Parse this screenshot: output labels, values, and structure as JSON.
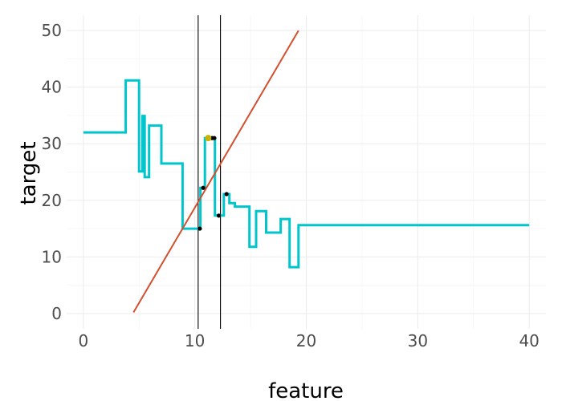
{
  "chart_data": {
    "type": "line",
    "title": "",
    "xlabel": "feature",
    "ylabel": "target",
    "xlim": [
      -1.5,
      41.5
    ],
    "ylim": [
      -2.7,
      52.7
    ],
    "x_ticks": [
      0,
      10,
      20,
      30,
      40
    ],
    "y_ticks": [
      0,
      10,
      20,
      30,
      40,
      50
    ],
    "x_tick_labels": [
      "0",
      "10",
      "20",
      "30",
      "40"
    ],
    "y_tick_labels": [
      "0",
      "10",
      "20",
      "30",
      "40",
      "50"
    ],
    "grid": true,
    "legend": "none",
    "series": [
      {
        "kind": "step",
        "color": "#00C5CD",
        "x": [
          0,
          3.8,
          3.8,
          5.0,
          5.0,
          5.3,
          5.3,
          5.5,
          5.5,
          5.9,
          5.9,
          7.0,
          7.0,
          8.9,
          8.9,
          10.5,
          10.5,
          10.9,
          10.9,
          11.3,
          11.3,
          11.8,
          11.8,
          12.1,
          12.1,
          12.6,
          12.6,
          13.1,
          13.1,
          13.6,
          13.6,
          14.2,
          14.2,
          14.9,
          14.9,
          15.5,
          15.5,
          16.4,
          16.4,
          17.7,
          17.7,
          18.5,
          18.5,
          19.3,
          19.3,
          23.1,
          23.1,
          40
        ],
        "y": [
          32,
          32,
          41.2,
          41.2,
          25.1,
          25.1,
          34.9,
          34.9,
          24.1,
          24.1,
          33.2,
          33.2,
          26.5,
          26.5,
          15,
          15,
          22.2,
          22.2,
          31,
          31,
          31,
          31,
          17.3,
          17.3,
          17.3,
          17.3,
          21.1,
          21.1,
          19.5,
          19.5,
          18.9,
          18.9,
          18.9,
          18.9,
          11.8,
          11.8,
          18.1,
          18.1,
          14.3,
          14.3,
          16.7,
          16.7,
          8.2,
          8.2,
          15.6,
          15.6,
          15.6,
          15.6
        ]
      },
      {
        "kind": "line",
        "color": "#D2502E",
        "x": [
          4.5,
          19.3
        ],
        "y": [
          0.2,
          50
        ]
      }
    ],
    "vertical_lines": [
      10.3,
      12.3
    ],
    "points_black": [
      {
        "x": 10.45,
        "y": 15.0
      },
      {
        "x": 10.75,
        "y": 22.2
      },
      {
        "x": 11.55,
        "y": 31.0
      },
      {
        "x": 11.75,
        "y": 31.0
      },
      {
        "x": 12.15,
        "y": 17.3
      },
      {
        "x": 12.85,
        "y": 21.1
      }
    ],
    "points_highlight": [
      {
        "x": 11.2,
        "y": 31.0,
        "color": "#C8B400"
      }
    ]
  }
}
